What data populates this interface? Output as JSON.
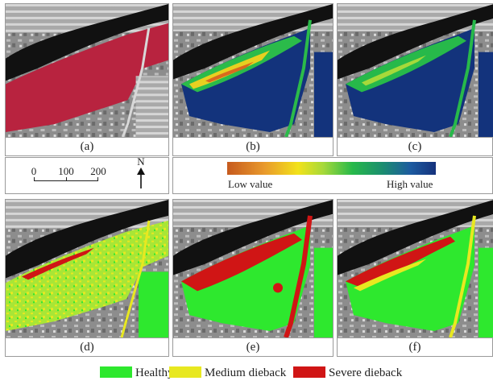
{
  "panels": {
    "a": "(a)",
    "b": "(b)",
    "c": "(c)",
    "d": "(d)",
    "e": "(e)",
    "f": "(f)"
  },
  "scalebar": {
    "ticks": [
      "0",
      "100",
      "200"
    ]
  },
  "north_arrow": {
    "label": "N"
  },
  "colorbar": {
    "low_label": "Low value",
    "high_label": "High value"
  },
  "legend": {
    "items": [
      {
        "label": "Healthy",
        "color": "#2ee82e"
      },
      {
        "label": "Medium dieback",
        "color": "#e8e820"
      },
      {
        "label": "Severe dieback",
        "color": "#d01515"
      }
    ]
  },
  "colors": {
    "false_color": "#b8233f",
    "index_high": "#13337c",
    "index_low": "#d96a1e",
    "healthy": "#2ee82e",
    "medium": "#e8e820",
    "severe": "#d01515"
  }
}
